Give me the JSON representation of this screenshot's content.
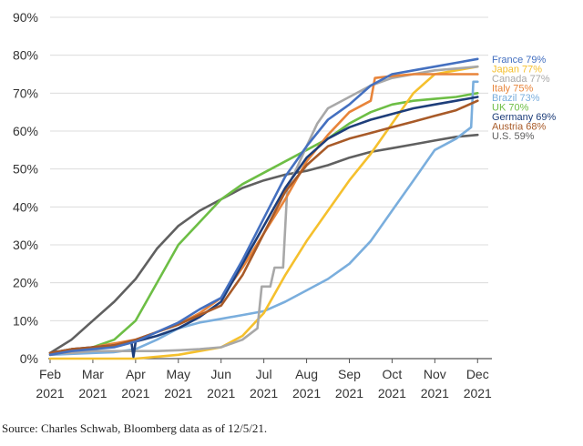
{
  "chart_data": {
    "type": "line",
    "y_tick_labels": [
      "0%",
      "10%",
      "20%",
      "30%",
      "40%",
      "50%",
      "60%",
      "70%",
      "80%",
      "90%"
    ],
    "x_tick_labels": [
      [
        "Feb",
        "2021"
      ],
      [
        "Mar",
        "2021"
      ],
      [
        "Apr",
        "2021"
      ],
      [
        "May",
        "2021"
      ],
      [
        "Jun",
        "2021"
      ],
      [
        "Jul",
        "2021"
      ],
      [
        "Aug",
        "2021"
      ],
      [
        "Sep",
        "2021"
      ],
      [
        "Oct",
        "2021"
      ],
      [
        "Nov",
        "2021"
      ],
      [
        "Dec",
        "2021"
      ]
    ],
    "x_months": [
      0,
      1,
      2,
      3,
      4,
      5,
      6,
      7,
      8,
      9,
      10
    ],
    "ylim": [
      0,
      90
    ],
    "xlim": [
      0,
      10.25
    ],
    "grid": "horizontal",
    "series": [
      {
        "name": "U.S.",
        "end_label": "U.S. 59%",
        "color": "#606060",
        "x": [
          0,
          0.5,
          1,
          1.5,
          2,
          2.5,
          3,
          3.5,
          4,
          4.5,
          5,
          5.5,
          6,
          6.5,
          7,
          7.5,
          8,
          8.5,
          9,
          9.5,
          10
        ],
        "y": [
          1.5,
          5,
          10,
          15,
          21,
          29,
          35,
          39,
          42,
          45,
          47,
          48.5,
          49.5,
          51,
          53,
          54.5,
          55.5,
          56.5,
          57.5,
          58.5,
          59
        ]
      },
      {
        "name": "UK",
        "end_label": "UK 70%",
        "color": "#6DBE45",
        "x": [
          0,
          0.5,
          1,
          1.5,
          2,
          2.5,
          3,
          3.5,
          4,
          4.5,
          5,
          5.5,
          6,
          6.5,
          7,
          7.5,
          8,
          8.5,
          9,
          9.5,
          10
        ],
        "y": [
          1.5,
          2,
          3,
          5,
          10,
          20,
          30,
          36,
          42,
          46,
          49,
          52,
          55,
          58,
          62,
          65,
          67,
          68,
          68.5,
          69,
          70
        ]
      },
      {
        "name": "Brazil",
        "end_label": "Brazil 73%",
        "color": "#7AAEDD",
        "x": [
          0,
          1,
          1.5,
          2,
          2.5,
          3,
          3.5,
          4,
          4.5,
          5,
          5.5,
          6,
          6.5,
          7,
          7.5,
          8,
          8.5,
          9,
          9.5,
          9.85,
          9.9,
          10
        ],
        "y": [
          1,
          1.5,
          1.7,
          2.5,
          5,
          8,
          9.5,
          10.5,
          11.5,
          12.5,
          15,
          18,
          21,
          25,
          31,
          39,
          47,
          55,
          58,
          61,
          73,
          73
        ]
      },
      {
        "name": "Japan",
        "end_label": "Japan 77%",
        "color": "#F5C02D",
        "x": [
          0,
          1,
          2,
          2.5,
          3,
          3.5,
          4,
          4.5,
          5,
          5.5,
          6,
          6.5,
          7,
          7.5,
          8,
          8.5,
          9,
          9.5,
          10
        ],
        "y": [
          0,
          0,
          0,
          0.5,
          1,
          2,
          3,
          6,
          12,
          22,
          31,
          39,
          47,
          54,
          62,
          70,
          75,
          76,
          77
        ]
      },
      {
        "name": "Canada",
        "end_label": "Canada 77%",
        "color": "#A8A8A8",
        "x": [
          0,
          0.5,
          1,
          1.5,
          2,
          2.5,
          3,
          3.5,
          4,
          4.5,
          4.85,
          4.95,
          5.15,
          5.25,
          5.45,
          5.55,
          5.8,
          6,
          6.25,
          6.5,
          7,
          7.5,
          8,
          8.5,
          9,
          9.5,
          10
        ],
        "y": [
          1.5,
          1.5,
          2,
          2,
          2,
          2,
          2.2,
          2.5,
          3,
          5,
          8,
          19,
          19,
          24,
          24,
          45,
          51,
          56,
          62,
          66,
          69,
          72,
          74,
          75,
          76,
          76.5,
          77
        ]
      },
      {
        "name": "Italy",
        "end_label": "Italy 75%",
        "color": "#E8843A",
        "x": [
          0,
          0.5,
          1,
          1.5,
          2,
          2.5,
          3,
          3.5,
          4,
          4.5,
          5,
          5.5,
          6,
          6.5,
          7,
          7.5,
          7.6,
          8,
          8.5,
          9,
          9.5,
          10
        ],
        "y": [
          1,
          2,
          3,
          4,
          5,
          7,
          9,
          12,
          16,
          24,
          33,
          42,
          52,
          59,
          65,
          68,
          74,
          74.5,
          75,
          75,
          75,
          75
        ]
      },
      {
        "name": "Germany",
        "end_label": "Germany 69%",
        "color": "#1E3E7A",
        "x": [
          0,
          0.5,
          1,
          1.5,
          1.9,
          1.95,
          2,
          2.5,
          3,
          3.5,
          4,
          4.5,
          5,
          5.5,
          6,
          6.5,
          7,
          7.5,
          8,
          8.5,
          9,
          9.5,
          10
        ],
        "y": [
          1.5,
          2.5,
          3,
          3.5,
          4.5,
          0.5,
          4.5,
          6,
          8,
          11,
          15,
          25,
          35,
          45,
          53,
          58,
          61,
          63,
          64.5,
          66,
          67,
          68,
          69
        ]
      },
      {
        "name": "Austria",
        "end_label": "Austria 68%",
        "color": "#A85A28",
        "x": [
          0,
          0.5,
          1,
          1.5,
          2,
          2.5,
          3,
          3.5,
          4,
          4.5,
          5,
          5.5,
          6,
          6.5,
          7,
          7.5,
          8,
          8.5,
          9,
          9.5,
          10
        ],
        "y": [
          1.5,
          2.5,
          3,
          3.5,
          5,
          7,
          9,
          11.5,
          14,
          22,
          33,
          44,
          51,
          56,
          58,
          59.5,
          61,
          62.5,
          64,
          65.5,
          68
        ]
      },
      {
        "name": "France",
        "end_label": "France 79%",
        "color": "#4470C0",
        "x": [
          0,
          0.5,
          1,
          1.5,
          2,
          2.5,
          3,
          3.5,
          4,
          4.5,
          5,
          5.5,
          6,
          6.5,
          7,
          7.5,
          8,
          8.5,
          9,
          9.5,
          10
        ],
        "y": [
          1,
          2,
          2.5,
          3,
          4.5,
          7,
          9.5,
          13,
          16,
          26,
          37,
          48,
          56,
          63,
          67,
          72,
          75,
          76,
          77,
          78,
          79
        ]
      }
    ]
  },
  "footer": {
    "source": "Source: Charles Schwab, Bloomberg data as of 12/5/21."
  }
}
